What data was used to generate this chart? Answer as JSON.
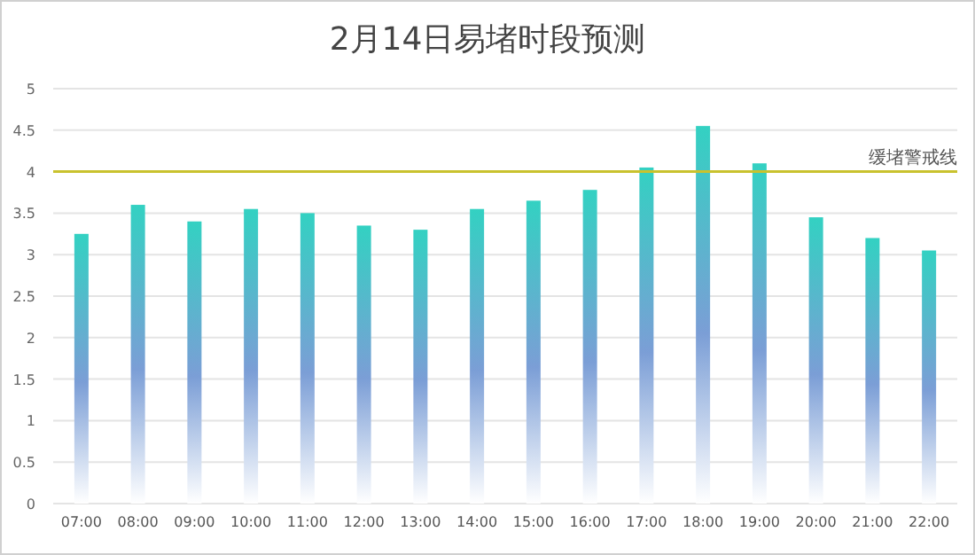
{
  "chart_data": {
    "type": "bar",
    "title": "2月14日易堵时段预测",
    "categories": [
      "07:00",
      "08:00",
      "09:00",
      "10:00",
      "11:00",
      "12:00",
      "13:00",
      "14:00",
      "15:00",
      "16:00",
      "17:00",
      "18:00",
      "19:00",
      "20:00",
      "21:00",
      "22:00"
    ],
    "values": [
      3.25,
      3.6,
      3.4,
      3.55,
      3.5,
      3.35,
      3.3,
      3.55,
      3.65,
      3.78,
      4.05,
      4.55,
      4.1,
      3.45,
      3.2,
      3.05
    ],
    "color": "#33d1c2",
    "ylim": [
      0,
      5
    ],
    "yticks": [
      0,
      0.5,
      1,
      1.5,
      2,
      2.5,
      3,
      3.5,
      4,
      4.5,
      5
    ],
    "grid": "y",
    "ref_lines": [
      {
        "axis": "y",
        "value": 4,
        "label": "缓堵警戒线",
        "color": "#c9c22e"
      }
    ]
  }
}
